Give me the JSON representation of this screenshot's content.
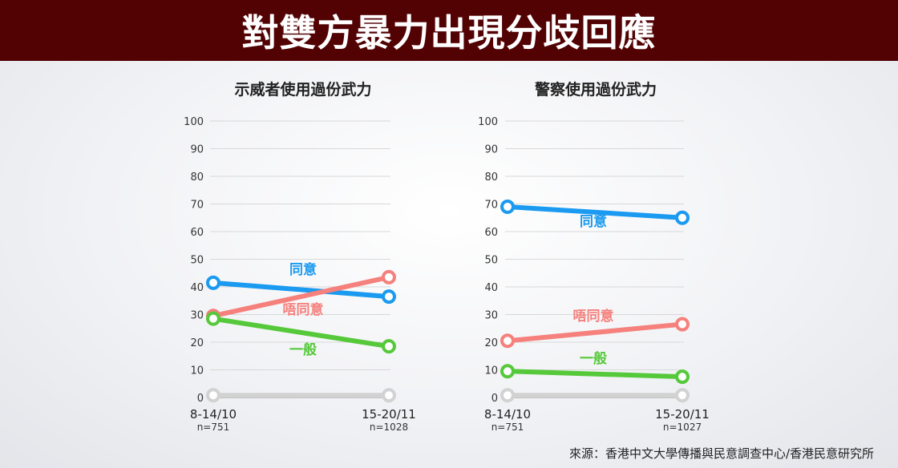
{
  "header": {
    "title": "對雙方暴力出現分歧回應"
  },
  "footer": {
    "source": "來源：香港中文大學傳播與民意調查中心/香港民意研究所"
  },
  "colors": {
    "agree": "#1a9af0",
    "disagree": "#f5807c",
    "neutral": "#55c93a",
    "unknown": "#d2d2d2",
    "banner": "#520203"
  },
  "chart_data": [
    {
      "type": "line",
      "title": "示威者使用過份武力",
      "ylim": [
        0,
        100
      ],
      "yticks": [
        0,
        10,
        20,
        30,
        40,
        50,
        60,
        70,
        80,
        90,
        100
      ],
      "categories": [
        "8-14/10",
        "15-20/11"
      ],
      "sample_sizes": [
        "n=751",
        "n=1028"
      ],
      "grid": true,
      "series": [
        {
          "name": "同意",
          "values": [
            41.5,
            36.5
          ],
          "color": "#1a9af0"
        },
        {
          "name": "唔同意",
          "values": [
            29.5,
            43.5
          ],
          "color": "#f5807c"
        },
        {
          "name": "一般",
          "values": [
            28.5,
            18.5
          ],
          "color": "#55c93a"
        },
        {
          "name": "",
          "values": [
            0.8,
            0.8
          ],
          "color": "#d2d2d2"
        }
      ]
    },
    {
      "type": "line",
      "title": "警察使用過份武力",
      "ylim": [
        0,
        100
      ],
      "yticks": [
        0,
        10,
        20,
        30,
        40,
        50,
        60,
        70,
        80,
        90,
        100
      ],
      "categories": [
        "8-14/10",
        "15-20/11"
      ],
      "sample_sizes": [
        "n=751",
        "n=1027"
      ],
      "grid": true,
      "series": [
        {
          "name": "同意",
          "values": [
            69,
            65
          ],
          "color": "#1a9af0"
        },
        {
          "name": "唔同意",
          "values": [
            20.5,
            26.5
          ],
          "color": "#f5807c"
        },
        {
          "name": "一般",
          "values": [
            9.5,
            7.5
          ],
          "color": "#55c93a"
        },
        {
          "name": "",
          "values": [
            0.8,
            0.8
          ],
          "color": "#d2d2d2"
        }
      ]
    }
  ]
}
